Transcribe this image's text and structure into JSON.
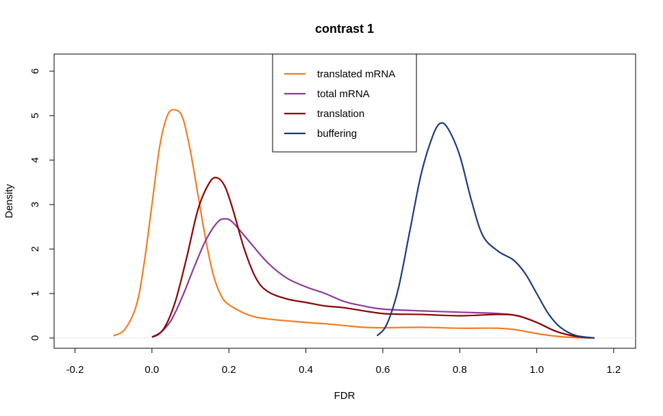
{
  "chart_data": {
    "type": "line",
    "title": "contrast 1",
    "xlabel": "FDR",
    "ylabel": "Density",
    "xlim": [
      -0.2,
      1.2
    ],
    "ylim": [
      0,
      6
    ],
    "x_ticks": [
      "-0.2",
      "0.0",
      "0.2",
      "0.4",
      "0.6",
      "0.8",
      "1.0",
      "1.2"
    ],
    "y_ticks": [
      "0",
      "1",
      "2",
      "3",
      "4",
      "5",
      "6"
    ],
    "baseline": 0,
    "legend_position": "top-center",
    "series": [
      {
        "name": "translated mRNA",
        "color": "#f57b20",
        "points": [
          [
            -0.1,
            0.05
          ],
          [
            -0.07,
            0.2
          ],
          [
            -0.04,
            0.75
          ],
          [
            -0.02,
            1.7
          ],
          [
            0.0,
            3.0
          ],
          [
            0.02,
            4.3
          ],
          [
            0.04,
            5.0
          ],
          [
            0.06,
            5.13
          ],
          [
            0.08,
            4.95
          ],
          [
            0.1,
            4.2
          ],
          [
            0.12,
            3.2
          ],
          [
            0.14,
            2.2
          ],
          [
            0.16,
            1.4
          ],
          [
            0.18,
            0.95
          ],
          [
            0.2,
            0.75
          ],
          [
            0.25,
            0.52
          ],
          [
            0.3,
            0.43
          ],
          [
            0.4,
            0.35
          ],
          [
            0.45,
            0.32
          ],
          [
            0.5,
            0.28
          ],
          [
            0.55,
            0.24
          ],
          [
            0.6,
            0.23
          ],
          [
            0.7,
            0.24
          ],
          [
            0.8,
            0.22
          ],
          [
            0.9,
            0.22
          ],
          [
            0.95,
            0.18
          ],
          [
            1.0,
            0.1
          ],
          [
            1.05,
            0.04
          ],
          [
            1.1,
            0.01
          ],
          [
            1.15,
            0.0
          ]
        ]
      },
      {
        "name": "total mRNA",
        "color": "#8b3a9a",
        "points": [
          [
            0.0,
            0.02
          ],
          [
            0.02,
            0.1
          ],
          [
            0.05,
            0.4
          ],
          [
            0.08,
            0.95
          ],
          [
            0.11,
            1.6
          ],
          [
            0.14,
            2.2
          ],
          [
            0.17,
            2.6
          ],
          [
            0.19,
            2.68
          ],
          [
            0.21,
            2.6
          ],
          [
            0.25,
            2.2
          ],
          [
            0.3,
            1.7
          ],
          [
            0.35,
            1.35
          ],
          [
            0.4,
            1.15
          ],
          [
            0.45,
            1.0
          ],
          [
            0.5,
            0.82
          ],
          [
            0.55,
            0.72
          ],
          [
            0.6,
            0.65
          ],
          [
            0.7,
            0.61
          ],
          [
            0.8,
            0.58
          ],
          [
            0.9,
            0.55
          ],
          [
            0.95,
            0.5
          ],
          [
            1.0,
            0.35
          ],
          [
            1.05,
            0.15
          ],
          [
            1.1,
            0.04
          ],
          [
            1.15,
            0.0
          ]
        ]
      },
      {
        "name": "translation",
        "color": "#8b0000",
        "points": [
          [
            0.0,
            0.02
          ],
          [
            0.03,
            0.2
          ],
          [
            0.06,
            0.8
          ],
          [
            0.09,
            1.8
          ],
          [
            0.12,
            2.9
          ],
          [
            0.15,
            3.5
          ],
          [
            0.17,
            3.6
          ],
          [
            0.19,
            3.4
          ],
          [
            0.21,
            2.9
          ],
          [
            0.24,
            2.0
          ],
          [
            0.27,
            1.35
          ],
          [
            0.3,
            1.05
          ],
          [
            0.35,
            0.88
          ],
          [
            0.4,
            0.8
          ],
          [
            0.45,
            0.72
          ],
          [
            0.5,
            0.68
          ],
          [
            0.6,
            0.55
          ],
          [
            0.7,
            0.53
          ],
          [
            0.8,
            0.5
          ],
          [
            0.9,
            0.53
          ],
          [
            0.95,
            0.5
          ],
          [
            1.0,
            0.35
          ],
          [
            1.05,
            0.15
          ],
          [
            1.1,
            0.04
          ],
          [
            1.15,
            0.0
          ]
        ]
      },
      {
        "name": "buffering",
        "color": "#1a3a7c",
        "points": [
          [
            0.585,
            0.05
          ],
          [
            0.61,
            0.3
          ],
          [
            0.64,
            1.1
          ],
          [
            0.67,
            2.4
          ],
          [
            0.7,
            3.7
          ],
          [
            0.73,
            4.55
          ],
          [
            0.75,
            4.83
          ],
          [
            0.77,
            4.7
          ],
          [
            0.8,
            4.1
          ],
          [
            0.83,
            3.1
          ],
          [
            0.86,
            2.3
          ],
          [
            0.9,
            1.95
          ],
          [
            0.94,
            1.75
          ],
          [
            0.97,
            1.45
          ],
          [
            1.0,
            1.0
          ],
          [
            1.03,
            0.55
          ],
          [
            1.06,
            0.25
          ],
          [
            1.1,
            0.06
          ],
          [
            1.15,
            0.0
          ]
        ]
      }
    ]
  }
}
